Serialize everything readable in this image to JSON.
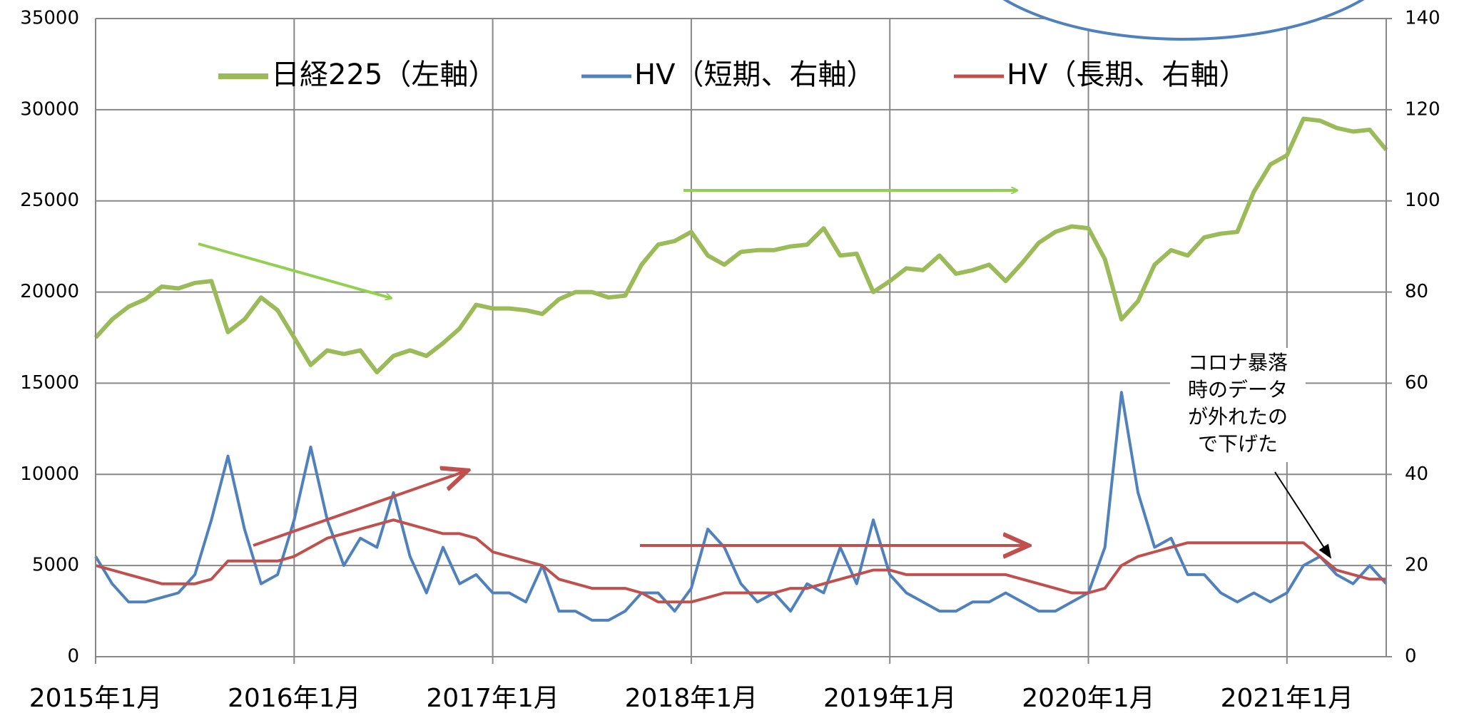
{
  "chart_data": {
    "type": "line",
    "x": [
      "2015-01",
      "2015-02",
      "2015-03",
      "2015-04",
      "2015-05",
      "2015-06",
      "2015-07",
      "2015-08",
      "2015-09",
      "2015-10",
      "2015-11",
      "2015-12",
      "2016-01",
      "2016-02",
      "2016-03",
      "2016-04",
      "2016-05",
      "2016-06",
      "2016-07",
      "2016-08",
      "2016-09",
      "2016-10",
      "2016-11",
      "2016-12",
      "2017-01",
      "2017-02",
      "2017-03",
      "2017-04",
      "2017-05",
      "2017-06",
      "2017-07",
      "2017-08",
      "2017-09",
      "2017-10",
      "2017-11",
      "2017-12",
      "2018-01",
      "2018-02",
      "2018-03",
      "2018-04",
      "2018-05",
      "2018-06",
      "2018-07",
      "2018-08",
      "2018-09",
      "2018-10",
      "2018-11",
      "2018-12",
      "2019-01",
      "2019-02",
      "2019-03",
      "2019-04",
      "2019-05",
      "2019-06",
      "2019-07",
      "2019-08",
      "2019-09",
      "2019-10",
      "2019-11",
      "2019-12",
      "2020-01",
      "2020-02",
      "2020-03",
      "2020-04",
      "2020-05",
      "2020-06",
      "2020-07",
      "2020-08",
      "2020-09",
      "2020-10",
      "2020-11",
      "2020-12",
      "2021-01",
      "2021-02",
      "2021-03",
      "2021-04",
      "2021-05",
      "2021-06",
      "2021-07"
    ],
    "series": [
      {
        "name": "日経225（左軸）",
        "color": "#9bbb59",
        "axis": "y",
        "values": [
          17500,
          18500,
          19200,
          19600,
          20300,
          20200,
          20500,
          20600,
          17800,
          18500,
          19700,
          19000,
          17500,
          16000,
          16800,
          16600,
          16800,
          15600,
          16500,
          16800,
          16500,
          17200,
          18000,
          19300,
          19100,
          19100,
          19000,
          18800,
          19600,
          20000,
          20000,
          19700,
          19800,
          21500,
          22600,
          22800,
          23300,
          22000,
          21500,
          22200,
          22300,
          22300,
          22500,
          22600,
          23500,
          22000,
          22100,
          20000,
          20600,
          21300,
          21200,
          22000,
          21000,
          21200,
          21500,
          20600,
          21600,
          22700,
          23300,
          23600,
          23500,
          21800,
          18500,
          19500,
          21500,
          22300,
          22000,
          23000,
          23200,
          23300,
          25500,
          27000,
          27500,
          29500,
          29400,
          29000,
          28800,
          28900,
          27800
        ]
      },
      {
        "name": "HV（短期、右軸）",
        "color": "#4f81bd",
        "axis": "y2",
        "values": [
          22,
          16,
          12,
          12,
          13,
          14,
          18,
          30,
          44,
          28,
          16,
          18,
          30,
          46,
          30,
          20,
          26,
          24,
          36,
          22,
          14,
          24,
          16,
          18,
          14,
          14,
          12,
          20,
          10,
          10,
          8,
          8,
          10,
          14,
          14,
          10,
          15,
          28,
          24,
          16,
          12,
          14,
          10,
          16,
          14,
          24,
          16,
          30,
          18,
          14,
          12,
          10,
          10,
          12,
          12,
          14,
          12,
          10,
          10,
          12,
          14,
          24,
          58,
          36,
          24,
          26,
          18,
          18,
          14,
          12,
          14,
          12,
          14,
          20,
          22,
          18,
          16,
          20,
          16
        ]
      },
      {
        "name": "HV（長期、右軸）",
        "color": "#c0504d",
        "axis": "y2",
        "values": [
          20,
          19,
          18,
          17,
          16,
          16,
          16,
          17,
          21,
          21,
          21,
          21,
          22,
          24,
          26,
          27,
          28,
          29,
          30,
          29,
          28,
          27,
          27,
          26,
          23,
          22,
          21,
          20,
          17,
          16,
          15,
          15,
          15,
          14,
          12,
          12,
          12,
          13,
          14,
          14,
          14,
          14,
          15,
          15,
          16,
          17,
          18,
          19,
          19,
          18,
          18,
          18,
          18,
          18,
          18,
          18,
          17,
          16,
          15,
          14,
          14,
          15,
          20,
          22,
          23,
          24,
          25,
          25,
          25,
          25,
          25,
          25,
          25,
          25,
          22,
          19,
          18,
          17,
          17
        ]
      }
    ],
    "xlim": [
      "2015-01",
      "2021-07"
    ],
    "xticks": [
      {
        "value": "2015-01",
        "label": "2015年1月"
      },
      {
        "value": "2016-01",
        "label": "2016年1月"
      },
      {
        "value": "2017-01",
        "label": "2017年1月"
      },
      {
        "value": "2018-01",
        "label": "2018年1月"
      },
      {
        "value": "2019-01",
        "label": "2019年1月"
      },
      {
        "value": "2020-01",
        "label": "2020年1月"
      },
      {
        "value": "2021-01",
        "label": "2021年1月"
      }
    ],
    "ylim": [
      0,
      35000
    ],
    "yticks": [
      0,
      5000,
      10000,
      15000,
      20000,
      25000,
      30000,
      35000
    ],
    "y2lim": [
      0,
      140
    ],
    "y2ticks": [
      0,
      20,
      40,
      60,
      80,
      100,
      120,
      140
    ],
    "grid": true,
    "legend": "top",
    "annotation": [
      "コロナ暴落",
      "時のデータ",
      "が外れたの",
      "で下げた"
    ]
  }
}
